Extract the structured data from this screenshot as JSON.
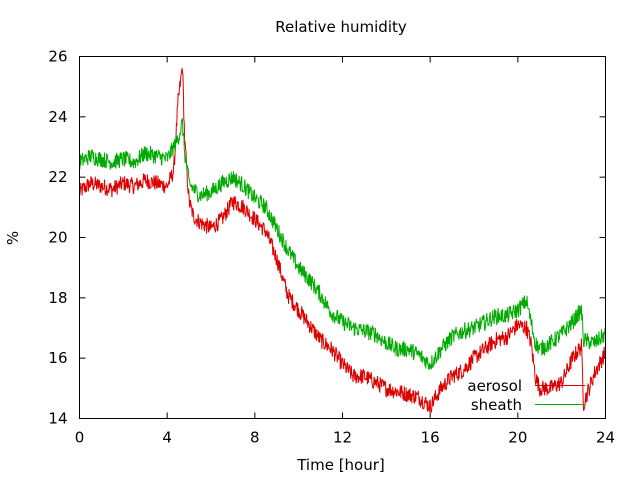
{
  "chart_data": {
    "type": "line",
    "title": "Relative humidity",
    "xlabel": "Time [hour]",
    "ylabel": "%",
    "xlim": [
      0,
      24
    ],
    "ylim": [
      14,
      26
    ],
    "xticks": [
      0,
      4,
      8,
      12,
      16,
      20,
      24
    ],
    "yticks": [
      14,
      16,
      18,
      20,
      22,
      24,
      26
    ],
    "grid": false,
    "legend_position": "bottom-right",
    "series": [
      {
        "name": "aerosol",
        "color": "#dd0000",
        "x": [
          0,
          0.5,
          1,
          1.5,
          2,
          2.5,
          3,
          3.5,
          4,
          4.3,
          4.5,
          4.7,
          4.8,
          5,
          5.2,
          5.5,
          6,
          6.5,
          7,
          7.5,
          8,
          8.5,
          9,
          9.5,
          10,
          10.5,
          11,
          11.5,
          12,
          12.5,
          13,
          13.5,
          14,
          14.5,
          15,
          15.5,
          16,
          16.5,
          17,
          17.5,
          18,
          18.5,
          19,
          19.5,
          20,
          20.4,
          20.6,
          20.8,
          21,
          21.5,
          22,
          22.5,
          22.9,
          23,
          23.5,
          24
        ],
        "y": [
          21.5,
          21.8,
          21.7,
          21.6,
          21.8,
          21.7,
          21.9,
          21.8,
          21.7,
          22.2,
          24.5,
          25.7,
          23.2,
          21.2,
          20.7,
          20.5,
          20.3,
          20.6,
          21.2,
          21.0,
          20.6,
          20.2,
          19.3,
          18.1,
          17.6,
          17.1,
          16.6,
          16.3,
          15.8,
          15.4,
          15.4,
          15.2,
          15.0,
          14.9,
          14.8,
          14.7,
          14.4,
          15.0,
          15.4,
          15.6,
          16.0,
          16.3,
          16.6,
          16.7,
          17.1,
          17.0,
          16.5,
          15.4,
          15.0,
          15.0,
          15.2,
          16.0,
          16.4,
          14.5,
          15.5,
          16.2
        ]
      },
      {
        "name": "sheath",
        "color": "#00aa00",
        "x": [
          0,
          0.5,
          1,
          1.5,
          2,
          2.5,
          3,
          3.5,
          4,
          4.3,
          4.5,
          4.7,
          4.8,
          5,
          5.2,
          5.5,
          6,
          6.5,
          7,
          7.5,
          8,
          8.5,
          9,
          9.5,
          10,
          10.5,
          11,
          11.5,
          12,
          12.5,
          13,
          13.5,
          14,
          14.5,
          15,
          15.5,
          16,
          16.5,
          17,
          17.5,
          18,
          18.5,
          19,
          19.5,
          20,
          20.4,
          20.6,
          20.8,
          21,
          21.5,
          22,
          22.5,
          22.9,
          23,
          23.5,
          24
        ],
        "y": [
          22.5,
          22.7,
          22.6,
          22.5,
          22.6,
          22.5,
          22.8,
          22.7,
          22.6,
          23.0,
          23.3,
          23.8,
          22.8,
          21.8,
          21.6,
          21.4,
          21.5,
          21.8,
          22.0,
          21.7,
          21.3,
          21.0,
          20.3,
          19.6,
          19.0,
          18.6,
          18.1,
          17.5,
          17.2,
          17.0,
          16.9,
          16.8,
          16.5,
          16.3,
          16.3,
          16.1,
          15.8,
          16.3,
          16.7,
          16.9,
          17.0,
          17.2,
          17.4,
          17.4,
          17.6,
          17.9,
          17.2,
          16.5,
          16.3,
          16.5,
          16.8,
          17.2,
          17.6,
          16.6,
          16.5,
          16.8
        ]
      }
    ]
  }
}
